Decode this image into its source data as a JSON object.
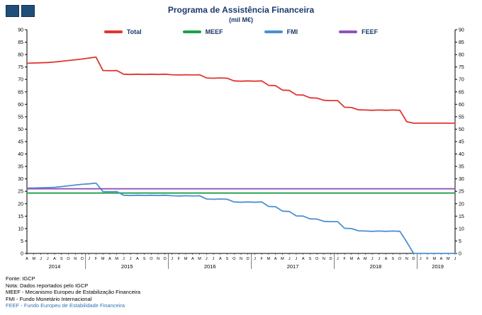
{
  "icons": {
    "logo": "two-blue-squares-logo"
  },
  "colors": {
    "title": "#1b3a6b",
    "footnote_highlight": "#2e74b5"
  },
  "chart_data": {
    "type": "line",
    "title": "Programa de Assistência Financeira",
    "subtitle": "(mil M€)",
    "ylim": [
      0,
      90
    ],
    "ytick_step": 5,
    "grid": false,
    "legend_position": "top-center",
    "x_years": [
      {
        "year": "2014",
        "months": [
          "A",
          "M",
          "J",
          "J",
          "A",
          "S",
          "O",
          "N",
          "D"
        ]
      },
      {
        "year": "2015",
        "months": [
          "J",
          "F",
          "M",
          "A",
          "M",
          "J",
          "J",
          "A",
          "S",
          "O",
          "N",
          "D"
        ]
      },
      {
        "year": "2016",
        "months": [
          "J",
          "F",
          "M",
          "A",
          "M",
          "J",
          "J",
          "A",
          "S",
          "O",
          "N",
          "D"
        ]
      },
      {
        "year": "2017",
        "months": [
          "J",
          "F",
          "M",
          "A",
          "M",
          "J",
          "J",
          "A",
          "S",
          "O",
          "N",
          "D"
        ]
      },
      {
        "year": "2018",
        "months": [
          "J",
          "F",
          "M",
          "A",
          "M",
          "J",
          "J",
          "A",
          "S",
          "O",
          "N",
          "D"
        ]
      },
      {
        "year": "2019",
        "months": [
          "J",
          "F",
          "M",
          "A",
          "M",
          "J"
        ]
      }
    ],
    "series": [
      {
        "name": "Total",
        "color": "#e0352f",
        "values": [
          76.5,
          76.6,
          76.7,
          76.8,
          77.0,
          77.3,
          77.6,
          77.9,
          78.2,
          78.6,
          79.0,
          73.6,
          73.5,
          73.6,
          72.1,
          72.0,
          72.1,
          72.0,
          72.1,
          72.0,
          72.1,
          71.9,
          71.8,
          71.9,
          71.8,
          71.9,
          70.6,
          70.5,
          70.6,
          70.5,
          69.4,
          69.3,
          69.4,
          69.3,
          69.4,
          67.6,
          67.5,
          65.7,
          65.6,
          63.8,
          63.7,
          62.6,
          62.5,
          61.6,
          61.5,
          61.5,
          58.8,
          58.7,
          57.8,
          57.7,
          57.6,
          57.7,
          57.6,
          57.7,
          57.6,
          53.0,
          52.4,
          52.4,
          52.4,
          52.4,
          52.4,
          52.4,
          52.4
        ]
      },
      {
        "name": "MEEF",
        "color": "#1ba04a",
        "constant": 24.3
      },
      {
        "name": "FMI",
        "color": "#4a90d2",
        "values": [
          26.3,
          26.3,
          26.4,
          26.5,
          26.6,
          26.9,
          27.2,
          27.5,
          27.8,
          28.0,
          28.3,
          24.9,
          24.8,
          24.9,
          23.4,
          23.3,
          23.4,
          23.3,
          23.4,
          23.3,
          23.4,
          23.2,
          23.1,
          23.2,
          23.1,
          23.2,
          21.9,
          21.8,
          21.9,
          21.8,
          20.7,
          20.6,
          20.7,
          20.6,
          20.7,
          18.9,
          18.8,
          17.0,
          16.9,
          15.1,
          15.0,
          13.9,
          13.8,
          12.9,
          12.8,
          12.8,
          10.1,
          10.0,
          9.1,
          9.0,
          8.9,
          9.0,
          8.9,
          9.0,
          8.9,
          4.6,
          0.0,
          0.0,
          0.0,
          0.0,
          0.0,
          0.0,
          0.0
        ]
      },
      {
        "name": "FEEF",
        "color": "#9154ba",
        "constant": 26.0
      }
    ]
  },
  "footer": {
    "lines": [
      {
        "text": "Fonte: IGCP",
        "color": "#000000"
      },
      {
        "text": "Nota: Dados reportados pelo IGCP",
        "color": "#000000"
      },
      {
        "text": "MEEF - Mecanismo Europeu de Estabilização Financeira",
        "color": "#000000"
      },
      {
        "text": "FMI - Fundo Monetário Internacional",
        "color": "#000000"
      },
      {
        "text": "FEEF - Fundo Europeu de Estabilidade Financeira",
        "color": "#2e74b5"
      }
    ]
  }
}
